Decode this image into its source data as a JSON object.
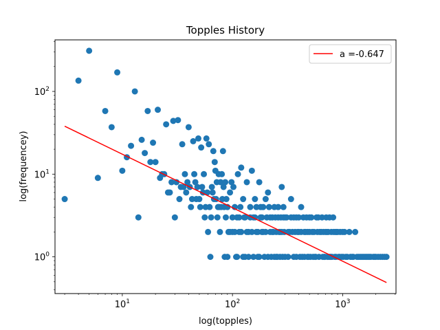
{
  "chart_data": {
    "type": "scatter",
    "title": "Topples History",
    "xlabel": "log(topples)",
    "ylabel": "log(frequencey)",
    "xscale": "log",
    "yscale": "log",
    "xlim": [
      2.45,
      3050
    ],
    "ylim": [
      0.36,
      420
    ],
    "grid": false,
    "legend_position": "top-right",
    "x_ticks": [
      {
        "base": "10",
        "exp": "1",
        "value": 10
      },
      {
        "base": "10",
        "exp": "2",
        "value": 100
      },
      {
        "base": "10",
        "exp": "3",
        "value": 1000
      }
    ],
    "y_ticks": [
      {
        "base": "10",
        "exp": "0",
        "value": 1
      },
      {
        "base": "10",
        "exp": "1",
        "value": 10
      },
      {
        "base": "10",
        "exp": "2",
        "value": 100
      }
    ],
    "colors": {
      "points": "#1f77b4",
      "fit": "#ff0000"
    },
    "fit": {
      "label": "a =-0.647",
      "slope": -0.647,
      "x": [
        3,
        2500
      ],
      "y": [
        38,
        0.49
      ]
    },
    "points": [
      [
        3,
        5
      ],
      [
        4,
        135
      ],
      [
        5,
        310
      ],
      [
        6,
        9
      ],
      [
        7,
        58
      ],
      [
        8,
        37
      ],
      [
        9,
        170
      ],
      [
        10,
        11
      ],
      [
        11,
        16
      ],
      [
        12,
        22
      ],
      [
        13,
        100
      ],
      [
        14,
        3
      ],
      [
        15,
        26
      ],
      [
        16,
        18
      ],
      [
        17,
        58
      ],
      [
        18,
        14
      ],
      [
        19,
        24
      ],
      [
        20,
        14
      ],
      [
        21,
        60
      ],
      [
        22,
        9
      ],
      [
        23,
        10
      ],
      [
        24,
        10
      ],
      [
        25,
        40
      ],
      [
        26,
        6
      ],
      [
        27,
        6
      ],
      [
        28,
        8
      ],
      [
        29,
        44
      ],
      [
        30,
        3
      ],
      [
        31,
        8
      ],
      [
        32,
        45
      ],
      [
        33,
        5
      ],
      [
        34,
        7
      ],
      [
        35,
        23
      ],
      [
        36,
        7
      ],
      [
        37,
        10
      ],
      [
        38,
        6
      ],
      [
        39,
        8
      ],
      [
        40,
        37
      ],
      [
        41,
        7
      ],
      [
        42,
        4
      ],
      [
        43,
        5
      ],
      [
        44,
        25
      ],
      [
        45,
        10
      ],
      [
        46,
        8
      ],
      [
        47,
        5
      ],
      [
        48,
        7
      ],
      [
        49,
        27
      ],
      [
        50,
        5
      ],
      [
        51,
        4
      ],
      [
        52,
        21
      ],
      [
        53,
        7
      ],
      [
        54,
        6
      ],
      [
        55,
        10
      ],
      [
        56,
        3
      ],
      [
        57,
        4
      ],
      [
        58,
        27
      ],
      [
        59,
        6
      ],
      [
        60,
        2
      ],
      [
        61,
        23
      ],
      [
        62,
        4
      ],
      [
        63,
        1
      ],
      [
        64,
        3
      ],
      [
        65,
        7
      ],
      [
        66,
        6
      ],
      [
        67,
        19
      ],
      [
        68,
        5
      ],
      [
        69,
        14
      ],
      [
        70,
        11
      ],
      [
        71,
        5
      ],
      [
        72,
        8
      ],
      [
        73,
        3
      ],
      [
        74,
        4
      ],
      [
        75,
        10
      ],
      [
        76,
        4
      ],
      [
        77,
        2
      ],
      [
        78,
        8
      ],
      [
        79,
        4
      ],
      [
        80,
        10
      ],
      [
        81,
        5
      ],
      [
        82,
        19
      ],
      [
        83,
        7
      ],
      [
        84,
        4
      ],
      [
        85,
        1
      ],
      [
        86,
        8
      ],
      [
        87,
        3
      ],
      [
        88,
        5
      ],
      [
        90,
        4
      ],
      [
        92,
        2
      ],
      [
        95,
        6
      ],
      [
        98,
        8
      ],
      [
        100,
        2
      ],
      [
        102,
        7
      ],
      [
        105,
        4
      ],
      [
        108,
        1
      ],
      [
        110,
        3
      ],
      [
        112,
        10
      ],
      [
        115,
        2
      ],
      [
        118,
        4
      ],
      [
        120,
        12
      ],
      [
        125,
        5
      ],
      [
        128,
        3
      ],
      [
        130,
        1
      ],
      [
        135,
        8
      ],
      [
        140,
        2
      ],
      [
        145,
        4
      ],
      [
        150,
        11
      ],
      [
        155,
        3
      ],
      [
        160,
        5
      ],
      [
        165,
        2
      ],
      [
        170,
        1
      ],
      [
        175,
        8
      ],
      [
        180,
        4
      ],
      [
        185,
        3
      ],
      [
        190,
        2
      ],
      [
        200,
        5
      ],
      [
        210,
        6
      ],
      [
        220,
        3
      ],
      [
        230,
        2
      ],
      [
        240,
        4
      ],
      [
        250,
        1
      ],
      [
        260,
        3
      ],
      [
        270,
        2
      ],
      [
        280,
        7
      ],
      [
        290,
        4
      ],
      [
        300,
        3
      ],
      [
        320,
        2
      ],
      [
        340,
        5
      ],
      [
        360,
        1
      ],
      [
        380,
        3
      ],
      [
        400,
        2
      ],
      [
        420,
        4
      ],
      [
        450,
        2
      ],
      [
        480,
        1
      ],
      [
        500,
        3
      ],
      [
        530,
        2
      ],
      [
        560,
        1
      ],
      [
        600,
        3
      ],
      [
        640,
        2
      ],
      [
        680,
        1
      ],
      [
        720,
        2
      ],
      [
        770,
        1
      ],
      [
        820,
        3
      ],
      [
        880,
        2
      ],
      [
        940,
        1
      ],
      [
        1000,
        2
      ],
      [
        1070,
        1
      ],
      [
        1150,
        2
      ],
      [
        1220,
        1
      ],
      [
        1300,
        2
      ],
      [
        1400,
        1
      ],
      [
        1500,
        1
      ],
      [
        1650,
        1
      ],
      [
        1800,
        1
      ],
      [
        1950,
        1
      ],
      [
        2100,
        1
      ],
      [
        2300,
        1
      ],
      [
        2500,
        1
      ],
      [
        90,
        1
      ],
      [
        95,
        2
      ],
      [
        100,
        3
      ],
      [
        105,
        2
      ],
      [
        110,
        1
      ],
      [
        115,
        3
      ],
      [
        120,
        2
      ],
      [
        125,
        1
      ],
      [
        130,
        3
      ],
      [
        135,
        2
      ],
      [
        140,
        1
      ],
      [
        145,
        3
      ],
      [
        150,
        2
      ],
      [
        155,
        1
      ],
      [
        160,
        3
      ],
      [
        165,
        4
      ],
      [
        170,
        2
      ],
      [
        175,
        1
      ],
      [
        180,
        3
      ],
      [
        185,
        2
      ],
      [
        190,
        4
      ],
      [
        195,
        1
      ],
      [
        200,
        2
      ],
      [
        205,
        3
      ],
      [
        210,
        1
      ],
      [
        215,
        4
      ],
      [
        220,
        2
      ],
      [
        225,
        1
      ],
      [
        230,
        3
      ],
      [
        235,
        2
      ],
      [
        240,
        1
      ],
      [
        245,
        3
      ],
      [
        250,
        2
      ],
      [
        255,
        1
      ],
      [
        260,
        4
      ],
      [
        265,
        2
      ],
      [
        270,
        1
      ],
      [
        275,
        3
      ],
      [
        280,
        2
      ],
      [
        285,
        1
      ],
      [
        290,
        3
      ],
      [
        295,
        2
      ],
      [
        300,
        1
      ],
      [
        310,
        3
      ],
      [
        320,
        1
      ],
      [
        330,
        2
      ],
      [
        340,
        3
      ],
      [
        350,
        2
      ],
      [
        360,
        3
      ],
      [
        370,
        2
      ],
      [
        380,
        1
      ],
      [
        390,
        2
      ],
      [
        400,
        3
      ],
      [
        410,
        1
      ],
      [
        420,
        2
      ],
      [
        430,
        1
      ],
      [
        440,
        3
      ],
      [
        450,
        1
      ],
      [
        460,
        2
      ],
      [
        470,
        3
      ],
      [
        480,
        2
      ],
      [
        490,
        1
      ],
      [
        500,
        2
      ],
      [
        510,
        1
      ],
      [
        520,
        3
      ],
      [
        540,
        1
      ],
      [
        550,
        2
      ],
      [
        570,
        1
      ],
      [
        580,
        3
      ],
      [
        590,
        2
      ],
      [
        610,
        1
      ],
      [
        620,
        2
      ],
      [
        650,
        3
      ],
      [
        660,
        1
      ],
      [
        670,
        2
      ],
      [
        690,
        1
      ],
      [
        700,
        2
      ],
      [
        710,
        3
      ],
      [
        730,
        1
      ],
      [
        740,
        2
      ],
      [
        750,
        1
      ],
      [
        760,
        3
      ],
      [
        780,
        1
      ],
      [
        790,
        2
      ],
      [
        800,
        1
      ],
      [
        830,
        2
      ],
      [
        850,
        1
      ],
      [
        860,
        2
      ],
      [
        870,
        1
      ],
      [
        900,
        2
      ],
      [
        920,
        1
      ],
      [
        950,
        2
      ],
      [
        980,
        1
      ],
      [
        1010,
        1
      ],
      [
        1040,
        2
      ],
      [
        1100,
        1
      ],
      [
        1180,
        1
      ],
      [
        1250,
        1
      ],
      [
        1350,
        1
      ],
      [
        1450,
        1
      ],
      [
        1550,
        1
      ],
      [
        1600,
        1
      ],
      [
        1700,
        1
      ],
      [
        1750,
        1
      ],
      [
        1900,
        1
      ],
      [
        2000,
        1
      ],
      [
        2200,
        1
      ],
      [
        2400,
        1
      ]
    ]
  }
}
